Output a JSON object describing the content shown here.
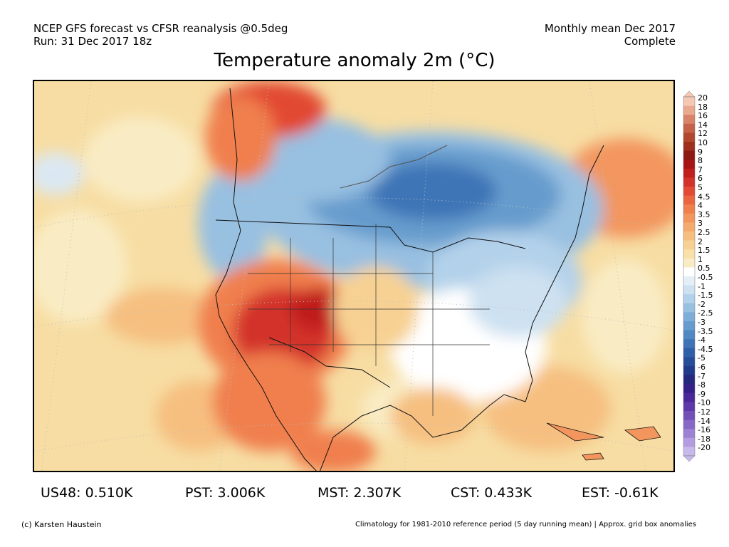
{
  "header": {
    "line1": "NCEP GFS forecast vs CFSR reanalysis @0.5deg",
    "line2": "Run: 31 Dec 2017 18z",
    "right1": "Monthly mean Dec 2017",
    "right2": "Complete"
  },
  "title": "Temperature anomaly 2m (°C)",
  "legend": {
    "labels": [
      "20",
      "18",
      "16",
      "14",
      "12",
      "10",
      "9",
      "8",
      "7",
      "6",
      "5",
      "4.5",
      "4",
      "3.5",
      "3",
      "2.5",
      "2",
      "1.5",
      "1",
      "0.5",
      "-0.5",
      "-1",
      "-1.5",
      "-2",
      "-2.5",
      "-3",
      "-3.5",
      "-4",
      "-4.5",
      "-5",
      "-6",
      "-7",
      "-8",
      "-9",
      "-10",
      "-12",
      "-14",
      "-16",
      "-18",
      "-20"
    ],
    "colors": [
      "#f5c8b4",
      "#e9a98f",
      "#d9836a",
      "#c66249",
      "#b2472f",
      "#9e2f1c",
      "#8c1a12",
      "#a81416",
      "#c01f1e",
      "#d3322a",
      "#e24a33",
      "#eb6540",
      "#f07f4e",
      "#f3965e",
      "#f5ab6f",
      "#f6bf80",
      "#f7d193",
      "#f8e0a8",
      "#f9ecc4",
      "#ffffff",
      "#e4eef7",
      "#cde1f1",
      "#b3d1ea",
      "#98c0e1",
      "#7eadd7",
      "#669ccd",
      "#4f88c2",
      "#3e74b6",
      "#2f5fa8",
      "#274c98",
      "#213a8a",
      "#25287c",
      "#35208a",
      "#4a2899",
      "#5e38a8",
      "#7350b8",
      "#8868c6",
      "#9d82d4",
      "#b39de0",
      "#c8b9ec"
    ]
  },
  "stats": {
    "us48": "US48: 0.510K",
    "pst": "PST: 3.006K",
    "mst": "MST: 2.307K",
    "cst": "CST: 0.433K",
    "est": "EST: -0.61K"
  },
  "footer": {
    "left": "(c) Karsten Haustein",
    "right": "Climatology for 1981-2010 reference period (5 day running mean) | Approx. grid box anomalies"
  }
}
